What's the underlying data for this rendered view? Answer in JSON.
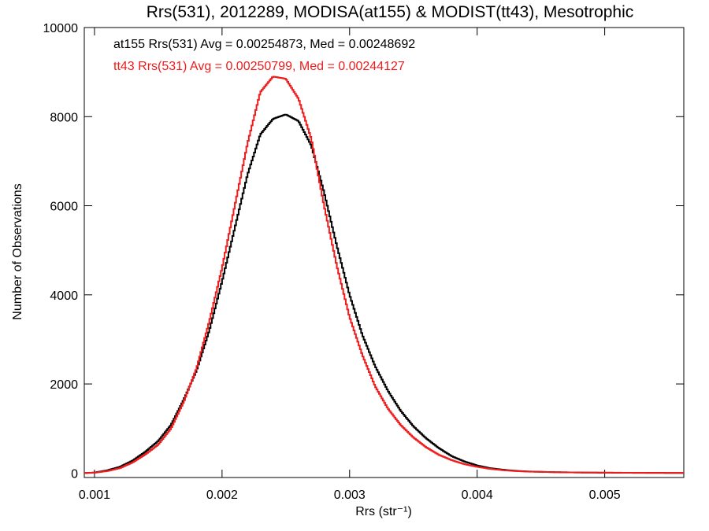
{
  "chart_data": {
    "type": "line",
    "title": "Rrs(531), 2012289, MODISA(at155) & MODIST(tt43), Mesotrophic",
    "xlabel": "Rrs (str⁻¹)",
    "ylabel": "Number of Observations",
    "xlim": [
      0.00092,
      0.00562
    ],
    "ylim": [
      -100,
      10000
    ],
    "xticks": [
      0.001,
      0.002,
      0.003,
      0.004,
      0.005
    ],
    "xtick_labels": [
      "0.001",
      "0.002",
      "0.003",
      "0.004",
      "0.005"
    ],
    "yticks": [
      0,
      2000,
      4000,
      6000,
      8000,
      10000
    ],
    "ytick_labels": [
      "0",
      "2000",
      "4000",
      "6000",
      "8000",
      "10000"
    ],
    "grid": false,
    "legend_position": "top-left",
    "series": [
      {
        "name": "at155 Rrs(531) Avg = 0.00254873, Med = 0.00248692",
        "color": "#000000",
        "points": [
          [
            0.00092,
            0
          ],
          [
            0.001,
            10
          ],
          [
            0.0011,
            60
          ],
          [
            0.0012,
            140
          ],
          [
            0.0013,
            280
          ],
          [
            0.0014,
            480
          ],
          [
            0.0015,
            720
          ],
          [
            0.0016,
            1080
          ],
          [
            0.0017,
            1650
          ],
          [
            0.0018,
            2300
          ],
          [
            0.0019,
            3200
          ],
          [
            0.002,
            4300
          ],
          [
            0.0021,
            5500
          ],
          [
            0.0022,
            6700
          ],
          [
            0.0023,
            7600
          ],
          [
            0.0024,
            7950
          ],
          [
            0.0025,
            8050
          ],
          [
            0.0026,
            7900
          ],
          [
            0.0027,
            7350
          ],
          [
            0.0028,
            6300
          ],
          [
            0.0029,
            5100
          ],
          [
            0.003,
            4000
          ],
          [
            0.0031,
            3100
          ],
          [
            0.0032,
            2400
          ],
          [
            0.0033,
            1850
          ],
          [
            0.0034,
            1400
          ],
          [
            0.0035,
            1050
          ],
          [
            0.0036,
            780
          ],
          [
            0.0037,
            560
          ],
          [
            0.0038,
            380
          ],
          [
            0.0039,
            260
          ],
          [
            0.004,
            170
          ],
          [
            0.0041,
            110
          ],
          [
            0.0042,
            75
          ],
          [
            0.0043,
            50
          ],
          [
            0.0044,
            35
          ],
          [
            0.0046,
            20
          ],
          [
            0.0048,
            12
          ],
          [
            0.005,
            8
          ],
          [
            0.0052,
            5
          ],
          [
            0.0054,
            3
          ],
          [
            0.00562,
            2
          ]
        ]
      },
      {
        "name": "tt43 Rrs(531) Avg = 0.00250799, Med = 0.00244127",
        "color": "#ee1c1c",
        "points": [
          [
            0.00092,
            0
          ],
          [
            0.001,
            8
          ],
          [
            0.0011,
            45
          ],
          [
            0.0012,
            110
          ],
          [
            0.0013,
            240
          ],
          [
            0.0014,
            420
          ],
          [
            0.0015,
            640
          ],
          [
            0.0016,
            1000
          ],
          [
            0.0017,
            1600
          ],
          [
            0.0018,
            2350
          ],
          [
            0.0019,
            3400
          ],
          [
            0.002,
            4600
          ],
          [
            0.0021,
            6000
          ],
          [
            0.0022,
            7400
          ],
          [
            0.0023,
            8550
          ],
          [
            0.0024,
            8900
          ],
          [
            0.0025,
            8850
          ],
          [
            0.0026,
            8400
          ],
          [
            0.0027,
            7500
          ],
          [
            0.0028,
            6000
          ],
          [
            0.0029,
            4650
          ],
          [
            0.003,
            3500
          ],
          [
            0.0031,
            2650
          ],
          [
            0.0032,
            1950
          ],
          [
            0.0033,
            1450
          ],
          [
            0.0034,
            1080
          ],
          [
            0.0035,
            800
          ],
          [
            0.0036,
            580
          ],
          [
            0.0037,
            410
          ],
          [
            0.0038,
            290
          ],
          [
            0.0039,
            200
          ],
          [
            0.004,
            140
          ],
          [
            0.0041,
            95
          ],
          [
            0.0042,
            65
          ],
          [
            0.0043,
            45
          ],
          [
            0.0044,
            32
          ],
          [
            0.0046,
            20
          ],
          [
            0.0048,
            13
          ],
          [
            0.005,
            9
          ],
          [
            0.0052,
            6
          ],
          [
            0.0054,
            4
          ],
          [
            0.00562,
            3
          ]
        ]
      }
    ]
  }
}
